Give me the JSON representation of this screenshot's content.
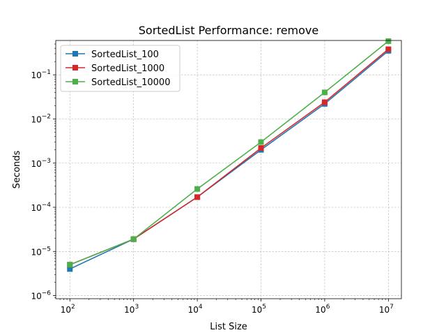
{
  "chart_data": {
    "type": "line",
    "title": "SortedList Performance: remove",
    "xlabel": "List Size",
    "ylabel": "Seconds",
    "x_scale": "log",
    "y_scale": "log",
    "x": [
      100,
      1000,
      10000,
      100000,
      1000000,
      10000000
    ],
    "xlim": [
      60,
      16000000
    ],
    "ylim": [
      8.5e-07,
      0.6
    ],
    "x_ticks": [
      {
        "value": 100,
        "base": "10",
        "exp": "2"
      },
      {
        "value": 1000,
        "base": "10",
        "exp": "3"
      },
      {
        "value": 10000,
        "base": "10",
        "exp": "4"
      },
      {
        "value": 100000,
        "base": "10",
        "exp": "5"
      },
      {
        "value": 1000000,
        "base": "10",
        "exp": "6"
      },
      {
        "value": 10000000,
        "base": "10",
        "exp": "7"
      }
    ],
    "y_ticks": [
      {
        "value": 1e-06,
        "base": "10",
        "exp": "−6"
      },
      {
        "value": 1e-05,
        "base": "10",
        "exp": "−5"
      },
      {
        "value": 0.0001,
        "base": "10",
        "exp": "−4"
      },
      {
        "value": 0.001,
        "base": "10",
        "exp": "−3"
      },
      {
        "value": 0.01,
        "base": "10",
        "exp": "−2"
      },
      {
        "value": 0.1,
        "base": "10",
        "exp": "−1"
      }
    ],
    "grid": true,
    "legend_position": "top-left",
    "series": [
      {
        "name": "SortedList_100",
        "color": "#1f77b4",
        "values": [
          4e-06,
          1.9e-05,
          0.00017,
          0.002,
          0.022,
          0.35
        ]
      },
      {
        "name": "SortedList_1000",
        "color": "#d62728",
        "values": [
          5e-06,
          1.9e-05,
          0.00017,
          0.0022,
          0.024,
          0.38
        ]
      },
      {
        "name": "SortedList_10000",
        "color": "#4daf4a",
        "values": [
          5e-06,
          1.9e-05,
          0.00026,
          0.003,
          0.04,
          0.58
        ]
      }
    ]
  }
}
